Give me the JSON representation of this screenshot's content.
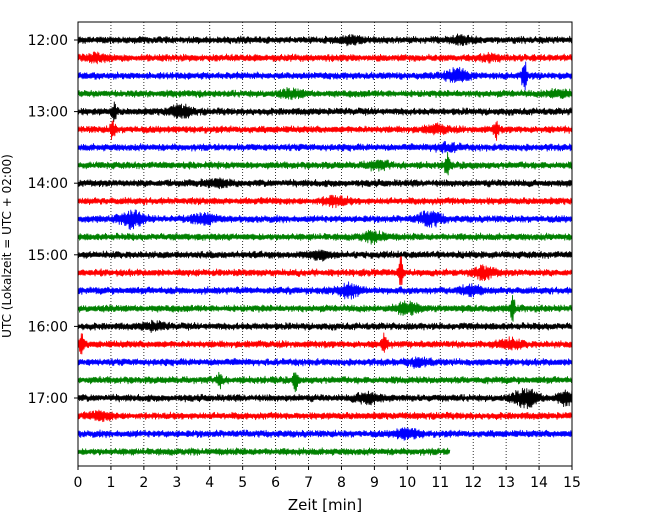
{
  "chart_data": {
    "type": "line",
    "title": "",
    "xlabel": "Zeit  [min]",
    "ylabel": "UTC (Lokalzeit = UTC + 02:00)",
    "xlim": [
      0,
      15
    ],
    "x_ticks": [
      0,
      1,
      2,
      3,
      4,
      5,
      6,
      7,
      8,
      9,
      10,
      11,
      12,
      13,
      14,
      15
    ],
    "y_tick_labels": [
      "12:00",
      "13:00",
      "14:00",
      "15:00",
      "16:00",
      "17:00"
    ],
    "grid": "vertical dotted",
    "trace_colors": [
      "#000000",
      "#ff0000",
      "#0000ff",
      "#008000"
    ],
    "series": [
      {
        "start": "12:00",
        "color": "#000000",
        "end_min": 15,
        "events": [
          {
            "t": 8.3,
            "amp": 0.3
          },
          {
            "t": 11.6,
            "amp": 0.3
          }
        ]
      },
      {
        "start": "12:15",
        "color": "#ff0000",
        "end_min": 15,
        "events": [
          {
            "t": 0.6,
            "amp": 0.3
          },
          {
            "t": 12.5,
            "amp": 0.2
          }
        ]
      },
      {
        "start": "12:30",
        "color": "#0000ff",
        "end_min": 15,
        "events": [
          {
            "t": 11.5,
            "amp": 0.6
          },
          {
            "t": 13.55,
            "amp": 1.7
          }
        ]
      },
      {
        "start": "12:45",
        "color": "#008000",
        "end_min": 15,
        "events": [
          {
            "t": 6.5,
            "amp": 0.3
          },
          {
            "t": 14.6,
            "amp": 0.3
          }
        ]
      },
      {
        "start": "13:00",
        "color": "#000000",
        "end_min": 15,
        "events": [
          {
            "t": 1.1,
            "amp": 0.9
          },
          {
            "t": 3.1,
            "amp": 0.5
          }
        ]
      },
      {
        "start": "13:15",
        "color": "#ff0000",
        "end_min": 15,
        "events": [
          {
            "t": 1.05,
            "amp": 1.0
          },
          {
            "t": 10.9,
            "amp": 0.3
          },
          {
            "t": 12.7,
            "amp": 0.9
          }
        ]
      },
      {
        "start": "13:30",
        "color": "#0000ff",
        "end_min": 15,
        "events": [
          {
            "t": 11.2,
            "amp": 0.3
          }
        ]
      },
      {
        "start": "13:45",
        "color": "#008000",
        "end_min": 15,
        "events": [
          {
            "t": 9.1,
            "amp": 0.3
          },
          {
            "t": 11.2,
            "amp": 1.1
          }
        ]
      },
      {
        "start": "14:00",
        "color": "#000000",
        "end_min": 15,
        "events": [
          {
            "t": 4.2,
            "amp": 0.3
          }
        ]
      },
      {
        "start": "14:15",
        "color": "#ff0000",
        "end_min": 15,
        "events": [
          {
            "t": 7.8,
            "amp": 0.4
          }
        ]
      },
      {
        "start": "14:30",
        "color": "#0000ff",
        "end_min": 15,
        "events": [
          {
            "t": 1.65,
            "amp": 0.7
          },
          {
            "t": 3.8,
            "amp": 0.4
          },
          {
            "t": 10.7,
            "amp": 0.6
          }
        ]
      },
      {
        "start": "14:45",
        "color": "#008000",
        "end_min": 15,
        "events": [
          {
            "t": 9.0,
            "amp": 0.4
          }
        ]
      },
      {
        "start": "15:00",
        "color": "#000000",
        "end_min": 15,
        "events": [
          {
            "t": 7.3,
            "amp": 0.3
          }
        ]
      },
      {
        "start": "15:15",
        "color": "#ff0000",
        "end_min": 15,
        "events": [
          {
            "t": 9.8,
            "amp": 1.4
          },
          {
            "t": 12.3,
            "amp": 0.5
          }
        ]
      },
      {
        "start": "15:30",
        "color": "#0000ff",
        "end_min": 15,
        "events": [
          {
            "t": 8.2,
            "amp": 0.6
          },
          {
            "t": 11.9,
            "amp": 0.4
          }
        ]
      },
      {
        "start": "15:45",
        "color": "#008000",
        "end_min": 15,
        "events": [
          {
            "t": 10.0,
            "amp": 0.5
          },
          {
            "t": 13.2,
            "amp": 1.2
          }
        ]
      },
      {
        "start": "16:00",
        "color": "#000000",
        "end_min": 15,
        "events": [
          {
            "t": 2.3,
            "amp": 0.3
          }
        ]
      },
      {
        "start": "16:15",
        "color": "#ff0000",
        "end_min": 15,
        "events": [
          {
            "t": 0.1,
            "amp": 1.1
          },
          {
            "t": 9.3,
            "amp": 1.0
          },
          {
            "t": 13.1,
            "amp": 0.4
          }
        ]
      },
      {
        "start": "16:30",
        "color": "#0000ff",
        "end_min": 15,
        "events": [
          {
            "t": 10.3,
            "amp": 0.3
          }
        ]
      },
      {
        "start": "16:45",
        "color": "#008000",
        "end_min": 15,
        "events": [
          {
            "t": 4.3,
            "amp": 0.9
          },
          {
            "t": 6.6,
            "amp": 0.9
          }
        ]
      },
      {
        "start": "17:00",
        "color": "#000000",
        "end_min": 15,
        "events": [
          {
            "t": 8.8,
            "amp": 0.5
          },
          {
            "t": 13.6,
            "amp": 0.8
          },
          {
            "t": 14.9,
            "amp": 0.6
          }
        ]
      },
      {
        "start": "17:15",
        "color": "#ff0000",
        "end_min": 15,
        "events": [
          {
            "t": 0.7,
            "amp": 0.3
          }
        ]
      },
      {
        "start": "17:30",
        "color": "#0000ff",
        "end_min": 15,
        "events": [
          {
            "t": 10.0,
            "amp": 0.4
          }
        ]
      },
      {
        "start": "17:45",
        "color": "#008000",
        "end_min": 11.3,
        "events": []
      }
    ]
  }
}
